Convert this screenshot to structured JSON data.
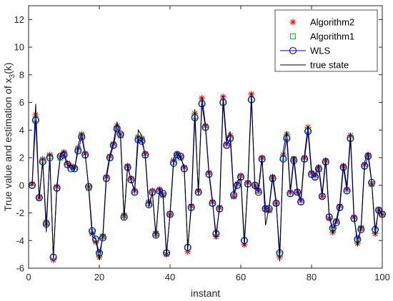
{
  "chart_data": {
    "type": "line",
    "title": "",
    "xlabel": "instant",
    "ylabel_main": "True value and estimation of x",
    "ylabel_sub": "3",
    "ylabel_tail": "(k)",
    "xlim": [
      0,
      100
    ],
    "ylim": [
      -6,
      13
    ],
    "xticks": [
      0,
      20,
      40,
      60,
      80,
      100
    ],
    "yticks": [
      -6,
      -4,
      -2,
      0,
      2,
      4,
      6,
      8,
      10,
      12
    ],
    "grid": false,
    "legend_position": "top-right",
    "x": [
      1,
      2,
      3,
      4,
      5,
      6,
      7,
      8,
      9,
      10,
      11,
      12,
      13,
      14,
      15,
      16,
      17,
      18,
      19,
      20,
      21,
      22,
      23,
      24,
      25,
      26,
      27,
      28,
      29,
      30,
      31,
      32,
      33,
      34,
      35,
      36,
      37,
      38,
      39,
      40,
      41,
      42,
      43,
      44,
      45,
      46,
      47,
      48,
      49,
      50,
      51,
      52,
      53,
      54,
      55,
      56,
      57,
      58,
      59,
      60,
      61,
      62,
      63,
      64,
      65,
      66,
      67,
      68,
      69,
      70,
      71,
      72,
      73,
      74,
      75,
      76,
      77,
      78,
      79,
      80,
      81,
      82,
      83,
      84,
      85,
      86,
      87,
      88,
      89,
      90,
      91,
      92,
      93,
      94,
      95,
      96,
      97,
      98,
      99,
      100
    ],
    "series": [
      {
        "name": "Algorithm2",
        "marker": "asterisk",
        "color": "#ff0000",
        "values": [
          0.1,
          5.1,
          -0.9,
          1.9,
          -2.8,
          2.2,
          -5.4,
          -0.1,
          2.1,
          2.4,
          1.6,
          1.4,
          1.3,
          2.7,
          3.7,
          2.3,
          -0.1,
          -3.5,
          -4.1,
          -5.2,
          -3.7,
          0.6,
          2.1,
          3.0,
          4.3,
          3.7,
          -2.2,
          1.4,
          0.5,
          -0.4,
          3.5,
          3.4,
          2.3,
          -1.2,
          -0.4,
          -3.5,
          -0.3,
          -0.7,
          -5.0,
          -2.1,
          1.8,
          2.3,
          2.1,
          1.3,
          -4.8,
          -1.5,
          5.2,
          -0.4,
          6.3,
          4.3,
          0.9,
          -1.2,
          -3.7,
          -1.6,
          6.4,
          3.0,
          3.6,
          -0.8,
          0.1,
          0.7,
          -4.3,
          0.2,
          6.6,
          0.0,
          -0.4,
          2.0,
          -1.7,
          -1.8,
          0.6,
          -1.3,
          -5.2,
          2.2,
          3.7,
          -0.5,
          1.9,
          -0.5,
          -1.1,
          2.0,
          4.2,
          0.9,
          0.7,
          1.3,
          -0.8,
          1.8,
          -2.4,
          -3.4,
          -2.6,
          -1.5,
          1.4,
          -0.3,
          3.6,
          -2.3,
          -4.2,
          -3.1,
          1.5,
          2.2,
          0.1,
          -3.5,
          -1.8,
          -2.1
        ]
      },
      {
        "name": "Algorithm1",
        "marker": "square",
        "color": "#00cc00",
        "values": [
          0.0,
          4.8,
          -0.9,
          1.8,
          -2.7,
          2.1,
          -5.2,
          -0.2,
          2.0,
          2.3,
          1.5,
          1.3,
          1.2,
          2.6,
          3.6,
          2.2,
          -0.2,
          -3.4,
          -4.0,
          -5.0,
          -3.7,
          0.5,
          2.0,
          2.9,
          4.1,
          3.6,
          -2.2,
          1.3,
          0.4,
          -0.5,
          3.4,
          3.3,
          2.2,
          -1.3,
          -0.5,
          -3.5,
          -0.4,
          -0.7,
          -4.9,
          -2.1,
          1.7,
          2.2,
          2.0,
          1.2,
          -4.5,
          -1.6,
          5.0,
          -0.5,
          5.9,
          4.2,
          0.8,
          -1.3,
          -3.5,
          -1.7,
          6.0,
          2.9,
          3.4,
          -0.8,
          0.0,
          0.6,
          -4.0,
          0.1,
          6.2,
          0.0,
          -0.4,
          1.9,
          -1.7,
          -1.8,
          0.5,
          -1.3,
          -5.0,
          2.0,
          3.5,
          -0.6,
          1.9,
          -0.5,
          -1.2,
          1.9,
          4.0,
          0.8,
          0.6,
          1.2,
          -0.8,
          1.7,
          -2.3,
          -3.2,
          -2.6,
          -1.6,
          1.3,
          -0.4,
          3.4,
          -2.4,
          -4.0,
          -3.1,
          1.4,
          2.1,
          0.1,
          -3.3,
          -1.8,
          -2.1
        ]
      },
      {
        "name": "WLS",
        "marker": "circle",
        "color": "#0000ff",
        "values": [
          0.0,
          4.7,
          -0.9,
          1.7,
          -2.8,
          2.0,
          -5.2,
          -0.2,
          2.1,
          2.2,
          1.5,
          1.2,
          1.2,
          2.5,
          3.5,
          2.2,
          -0.1,
          -3.3,
          -3.9,
          -4.9,
          -3.8,
          0.5,
          2.0,
          2.9,
          4.1,
          3.7,
          -2.3,
          1.3,
          0.4,
          -0.5,
          3.3,
          3.2,
          2.2,
          -1.4,
          -0.5,
          -3.6,
          -0.4,
          -0.6,
          -4.9,
          -2.1,
          1.6,
          2.2,
          2.1,
          1.2,
          -4.5,
          -1.6,
          4.9,
          -0.5,
          5.9,
          4.2,
          0.8,
          -1.3,
          -3.5,
          -1.7,
          6.0,
          2.9,
          3.4,
          -0.7,
          0.0,
          0.6,
          -4.0,
          0.1,
          6.2,
          0.0,
          -0.5,
          1.9,
          -1.7,
          -1.7,
          0.5,
          -1.3,
          -4.9,
          1.9,
          3.4,
          -0.6,
          1.8,
          -0.5,
          -1.2,
          1.9,
          3.9,
          0.8,
          0.6,
          1.2,
          -0.8,
          1.7,
          -2.3,
          -3.1,
          -2.7,
          -1.6,
          1.3,
          -0.4,
          3.4,
          -2.4,
          -3.9,
          -3.2,
          1.4,
          2.1,
          0.2,
          -3.2,
          -1.8,
          -2.1
        ]
      },
      {
        "name": "true state",
        "marker": "none",
        "color": "#000000",
        "values": [
          0.0,
          5.9,
          -1.0,
          1.9,
          -3.4,
          2.3,
          -5.3,
          0.0,
          2.2,
          2.5,
          1.4,
          1.5,
          1.1,
          2.9,
          3.8,
          2.3,
          -0.3,
          -3.7,
          -3.9,
          -5.4,
          -3.6,
          0.8,
          2.2,
          3.1,
          4.6,
          3.4,
          -2.5,
          1.5,
          0.3,
          -0.3,
          4.0,
          3.6,
          2.0,
          -1.6,
          -0.5,
          -3.8,
          -0.2,
          -0.8,
          -5.1,
          -2.0,
          1.9,
          2.4,
          1.9,
          1.4,
          -4.7,
          -1.3,
          5.5,
          -0.7,
          6.4,
          4.4,
          1.0,
          -1.1,
          -3.9,
          -1.4,
          6.5,
          3.2,
          3.9,
          -0.6,
          0.3,
          0.5,
          -4.4,
          0.3,
          6.7,
          -0.3,
          -0.2,
          2.1,
          -2.9,
          -1.6,
          0.8,
          -1.1,
          -5.5,
          2.5,
          3.9,
          -0.4,
          2.1,
          -0.3,
          -1.0,
          2.2,
          4.3,
          1.1,
          0.8,
          1.5,
          -0.6,
          2.0,
          -2.1,
          -3.5,
          -2.5,
          -1.3,
          1.6,
          -0.1,
          3.8,
          -2.1,
          -4.4,
          -3.0,
          1.7,
          2.4,
          0.3,
          -3.6,
          -1.6,
          -2.3
        ]
      }
    ]
  }
}
